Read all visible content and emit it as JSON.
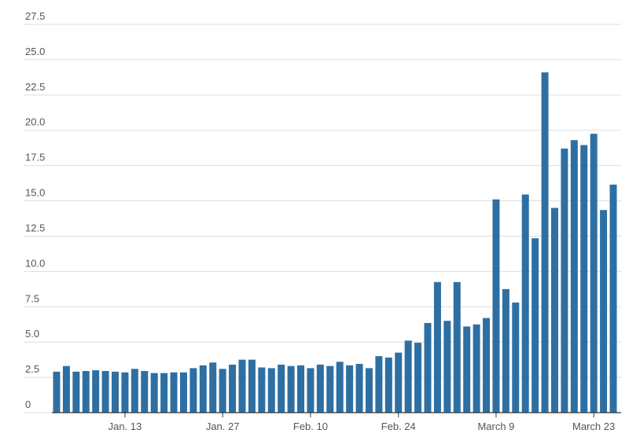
{
  "chart_data": {
    "type": "bar",
    "categories": [
      null,
      null,
      null,
      null,
      null,
      null,
      null,
      "Jan. 13",
      null,
      null,
      null,
      null,
      null,
      null,
      null,
      null,
      null,
      "Jan. 27",
      null,
      null,
      null,
      null,
      null,
      null,
      null,
      null,
      "Feb. 10",
      null,
      null,
      null,
      null,
      null,
      null,
      null,
      null,
      "Feb. 24",
      null,
      null,
      null,
      null,
      null,
      null,
      null,
      null,
      null,
      "March 9",
      null,
      null,
      null,
      null,
      null,
      null,
      null,
      null,
      null,
      "March 23",
      null,
      null
    ],
    "values": [
      2.9,
      3.3,
      2.9,
      2.95,
      3.0,
      2.95,
      2.9,
      2.85,
      3.1,
      2.95,
      2.8,
      2.8,
      2.85,
      2.85,
      3.15,
      3.35,
      3.55,
      3.1,
      3.4,
      3.75,
      3.75,
      3.2,
      3.15,
      3.4,
      3.3,
      3.35,
      3.15,
      3.4,
      3.3,
      3.6,
      3.35,
      3.45,
      3.15,
      4.0,
      3.9,
      4.25,
      5.1,
      4.95,
      6.35,
      9.25,
      6.5,
      9.25,
      6.1,
      6.25,
      6.7,
      15.1,
      8.75,
      7.8,
      15.45,
      12.35,
      24.1,
      14.5,
      18.7,
      19.3,
      18.95,
      19.75,
      14.35,
      16.15
    ],
    "color": "#2e6fa3",
    "ylim": [
      0,
      27.5
    ],
    "yticks": [
      0,
      2.5,
      {
        "value": 5,
        "label": "5.0"
      },
      7.5,
      {
        "value": 10,
        "label": "10.0"
      },
      12.5,
      {
        "value": 15,
        "label": "15.0"
      },
      17.5,
      {
        "value": 20,
        "label": "20.0"
      },
      22.5,
      {
        "value": 25,
        "label": "25.0"
      },
      27.5
    ],
    "grid": true
  }
}
